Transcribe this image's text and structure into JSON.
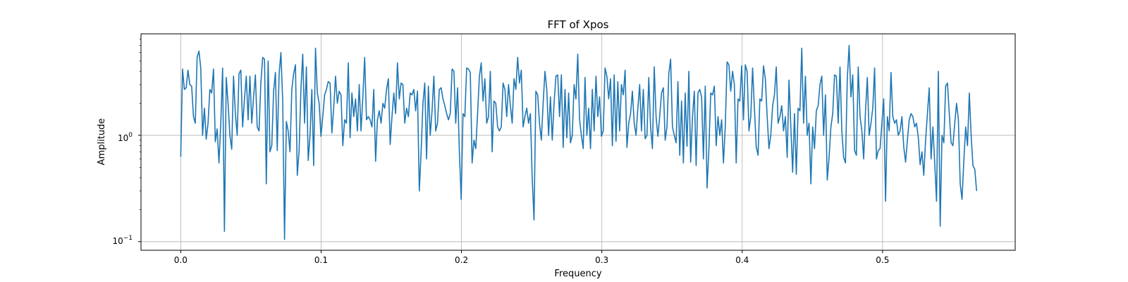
{
  "chart_data": {
    "type": "line",
    "title": "FFT of Xpos",
    "xlabel": "Frequency",
    "ylabel": "Amplitude",
    "xlim": [
      -0.0283,
      0.5945
    ],
    "ylim": [
      0.083,
      9.0
    ],
    "yscale": "log",
    "grid": true,
    "x_ticks": [
      0.0,
      0.1,
      0.2,
      0.3,
      0.4,
      0.5
    ],
    "x_tick_labels": [
      "0.0",
      "0.1",
      "0.2",
      "0.3",
      "0.4",
      "0.5"
    ],
    "y_ticks": [
      1,
      0.1
    ],
    "y_tick_labels": {
      "one": {
        "base": "10",
        "exp": "0"
      },
      "tenth": {
        "base": "10",
        "exp": "−1"
      }
    },
    "line_color": "#1f77b4",
    "x_range": [
      0.0,
      0.567
    ],
    "series": [
      {
        "values": [
          0.63,
          4.2,
          2.7,
          2.8,
          4.1,
          3.0,
          2.9,
          1.5,
          1.3,
          5.4,
          6.2,
          4.3,
          1.0,
          1.8,
          0.92,
          1.3,
          2.7,
          2.5,
          4.2,
          0.87,
          1.15,
          0.55,
          1.3,
          4.3,
          0.125,
          3.5,
          2.0,
          1.0,
          0.74,
          3.6,
          1.6,
          1.0,
          3.8,
          4.1,
          1.2,
          2.2,
          3.6,
          1.4,
          3.6,
          1.3,
          2.3,
          3.7,
          1.2,
          1.1,
          3.1,
          5.4,
          5.2,
          0.35,
          5.0,
          0.7,
          0.8,
          2.6,
          3.9,
          0.72,
          3.7,
          6.0,
          2.1,
          0.105,
          1.35,
          1.1,
          0.7,
          2.7,
          3.8,
          4.6,
          0.42,
          0.72,
          2.7,
          5.8,
          1.3,
          4.4,
          0.58,
          1.0,
          2.7,
          0.52,
          6.6,
          2.5,
          2.0,
          0.98,
          1.5,
          2.4,
          2.7,
          3.2,
          3.1,
          1.05,
          1.8,
          3.6,
          2.0,
          2.6,
          2.4,
          0.8,
          1.4,
          1.3,
          4.8,
          0.95,
          2.5,
          1.5,
          2.2,
          1.1,
          3.0,
          1.1,
          2.3,
          5.4,
          1.4,
          1.5,
          1.4,
          1.2,
          2.7,
          0.57,
          1.4,
          1.7,
          1.3,
          2.0,
          1.8,
          2.7,
          3.4,
          0.82,
          1.5,
          2.5,
          1.6,
          4.8,
          2.2,
          3.1,
          3.0,
          1.3,
          1.8,
          1.5,
          2.5,
          2.4,
          2.7,
          1.7,
          2.6,
          0.3,
          0.7,
          2.0,
          3.1,
          0.6,
          2.9,
          1.0,
          1.7,
          3.6,
          1.1,
          1.3,
          2.7,
          2.8,
          2.2,
          1.9,
          1.6,
          1.4,
          1.6,
          4.2,
          4.0,
          1.3,
          2.8,
          0.7,
          0.25,
          1.6,
          1.5,
          4.3,
          4.2,
          3.9,
          0.55,
          0.9,
          0.75,
          1.6,
          3.6,
          4.8,
          2.1,
          3.4,
          1.3,
          1.5,
          4.0,
          0.7,
          2.1,
          2.0,
          1.2,
          1.1,
          1.2,
          3.1,
          2.7,
          1.5,
          3.0,
          1.9,
          1.3,
          3.4,
          2.7,
          5.4,
          3.1,
          4.1,
          1.2,
          1.5,
          1.8,
          1.3,
          1.6,
          0.39,
          0.16,
          2.6,
          2.4,
          1.3,
          0.9,
          2.0,
          4.0,
          2.7,
          1.0,
          2.3,
          0.9,
          2.0,
          3.6,
          3.7,
          1.5,
          3.7,
          0.77,
          2.7,
          0.95,
          2.5,
          0.85,
          1.0,
          3.0,
          2.2,
          5.8,
          1.4,
          1.0,
          0.75,
          3.5,
          1.0,
          1.8,
          0.75,
          2.7,
          1.1,
          3.6,
          1.5,
          2.3,
          0.98,
          1.1,
          4.3,
          3.6,
          2.2,
          3.4,
          0.8,
          3.7,
          0.88,
          3.2,
          1.1,
          3.0,
          2.4,
          4.1,
          0.77,
          1.3,
          1.6,
          2.6,
          1.3,
          1.0,
          1.8,
          3.0,
          1.1,
          2.7,
          0.93,
          1.0,
          3.5,
          1.2,
          0.75,
          4.4,
          1.5,
          0.98,
          1.5,
          2.5,
          2.8,
          0.9,
          1.2,
          3.8,
          5.2,
          1.2,
          1.0,
          0.85,
          3.2,
          0.65,
          2.1,
          0.55,
          2.5,
          0.79,
          4.0,
          0.56,
          1.5,
          2.6,
          0.52,
          2.5,
          2.7,
          2.3,
          0.6,
          2.9,
          0.32,
          0.73,
          2.5,
          2.4,
          2.9,
          0.8,
          1.5,
          1.0,
          1.4,
          0.55,
          1.2,
          4.9,
          4.6,
          2.6,
          4.0,
          3.0,
          0.55,
          2.2,
          2.1,
          4.5,
          1.4,
          4.6,
          4.0,
          1.1,
          1.5,
          4.3,
          1.8,
          0.78,
          0.65,
          2.2,
          2.1,
          4.5,
          3.4,
          1.5,
          0.75,
          1.0,
          1.9,
          2.4,
          4.4,
          1.3,
          1.5,
          1.9,
          1.1,
          1.5,
          0.62,
          3.3,
          1.2,
          0.45,
          1.6,
          0.43,
          1.8,
          1.7,
          6.6,
          1.3,
          3.6,
          1.0,
          1.3,
          0.35,
          1.2,
          0.75,
          1.7,
          1.9,
          3.0,
          3.6,
          1.0,
          2.4,
          0.38,
          0.62,
          1.2,
          1.6,
          3.7,
          3.6,
          1.3,
          4.4,
          1.1,
          0.62,
          0.55,
          3.4,
          7.0,
          2.3,
          3.7,
          0.72,
          0.65,
          4.4,
          1.5,
          1.1,
          0.6,
          1.7,
          3.5,
          1.0,
          1.3,
          1.8,
          4.3,
          0.6,
          0.72,
          0.75,
          1.3,
          2.2,
          0.24,
          1.5,
          1.1,
          3.9,
          1.5,
          1.3,
          1.4,
          1.0,
          1.1,
          1.5,
          0.78,
          0.56,
          0.9,
          1.4,
          1.6,
          1.5,
          1.2,
          1.3,
          0.95,
          0.53,
          0.7,
          0.42,
          0.9,
          1.6,
          2.8,
          0.6,
          1.2,
          0.55,
          0.24,
          4.0,
          0.14,
          1.0,
          0.85,
          2.9,
          3.1,
          1.6,
          0.85,
          0.8,
          1.3,
          2.0,
          1.4,
          0.35,
          0.25,
          0.58,
          1.2,
          0.8,
          2.5,
          1.0,
          0.52,
          0.48,
          0.3
        ]
      }
    ]
  }
}
